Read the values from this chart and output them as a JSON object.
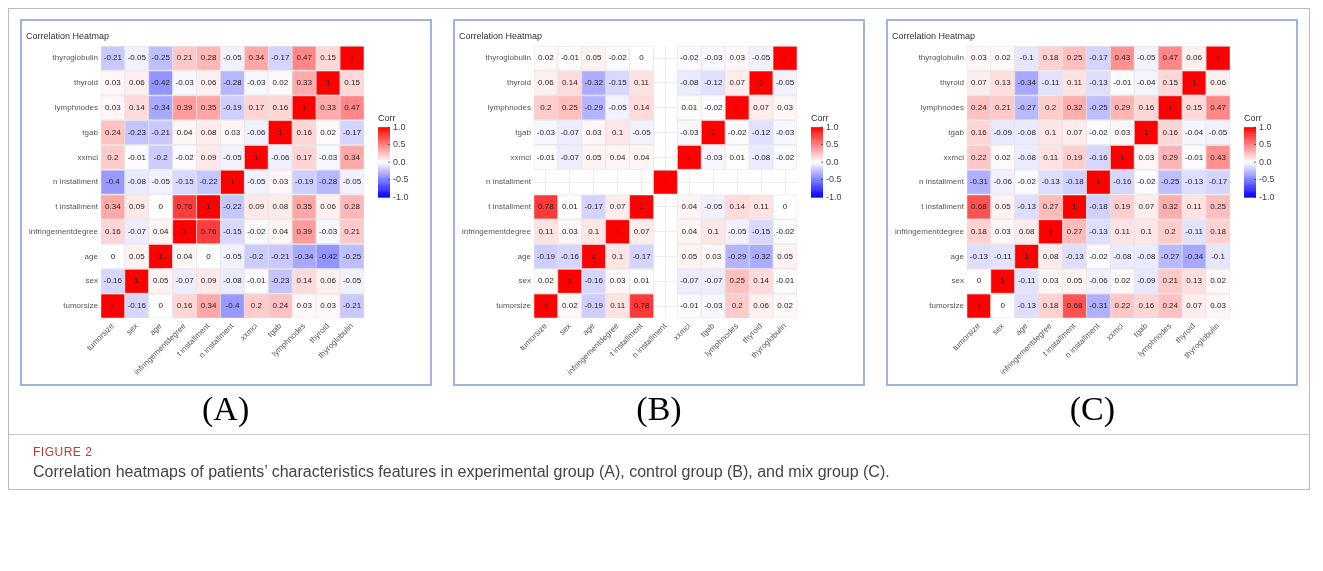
{
  "chart_data": [
    {
      "type": "heatmap",
      "title": "Correlation Heatmap",
      "clabel": "Corr",
      "annotations": [
        "(A)"
      ],
      "data_labels": true,
      "categories": [
        "tumorsize",
        "sex",
        "age",
        "infringementdegree",
        "t installment",
        "n installment",
        "xxmci",
        "tgab",
        "lymphnodes",
        "thyroid",
        "thyroglobulin"
      ],
      "y_categories": [
        "thyroglobulin",
        "thyroid",
        "lymphnodes",
        "tgab",
        "xxmci",
        "n installment",
        "t installment",
        "infringementdegree",
        "age",
        "sex",
        "tumorsize"
      ],
      "clim": [
        -1,
        1
      ],
      "cticks": [
        {
          "value": 1,
          "label": "1.0"
        },
        {
          "value": 0.5,
          "label": "0.5"
        },
        {
          "value": 0,
          "label": "0.0"
        },
        {
          "value": -0.5,
          "label": "-0.5"
        },
        {
          "value": -1,
          "label": "-1.0"
        }
      ],
      "cells": [
        [
          -0.21,
          -0.05,
          -0.25,
          0.21,
          0.28,
          -0.05,
          0.34,
          -0.17,
          0.47,
          0.15,
          1
        ],
        [
          0.03,
          0.06,
          -0.42,
          -0.03,
          0.06,
          -0.28,
          -0.03,
          0.02,
          0.33,
          1,
          0.15
        ],
        [
          0.03,
          0.14,
          -0.34,
          0.39,
          0.35,
          -0.19,
          0.17,
          0.16,
          1,
          0.33,
          0.47
        ],
        [
          0.24,
          -0.23,
          -0.21,
          0.04,
          0.08,
          0.03,
          -0.06,
          1,
          0.16,
          0.02,
          -0.17
        ],
        [
          0.2,
          -0.01,
          -0.2,
          -0.02,
          0.09,
          -0.05,
          1,
          -0.06,
          0.17,
          -0.03,
          0.34
        ],
        [
          -0.4,
          -0.08,
          -0.05,
          -0.15,
          -0.22,
          1,
          -0.05,
          0.03,
          -0.19,
          -0.28,
          -0.05
        ],
        [
          0.34,
          0.09,
          0,
          0.76,
          1,
          -0.22,
          0.09,
          0.08,
          0.35,
          0.06,
          0.28
        ],
        [
          0.16,
          -0.07,
          0.04,
          1,
          0.76,
          -0.15,
          -0.02,
          0.04,
          0.39,
          -0.03,
          0.21
        ],
        [
          0,
          0.05,
          1,
          0.04,
          0,
          -0.05,
          -0.2,
          -0.21,
          -0.34,
          -0.42,
          -0.25
        ],
        [
          -0.16,
          1,
          0.05,
          -0.07,
          0.09,
          -0.08,
          -0.01,
          -0.23,
          0.14,
          0.06,
          -0.05
        ],
        [
          1,
          -0.16,
          0,
          0.16,
          0.34,
          -0.4,
          0.2,
          0.24,
          0.03,
          0.03,
          -0.21
        ]
      ]
    },
    {
      "type": "heatmap",
      "title": "Correlation Heatmap",
      "clabel": "Corr",
      "annotations": [
        "(B)"
      ],
      "data_labels": true,
      "grid": true,
      "categories": [
        "tumorsize",
        "sex",
        "age",
        "infringementdegree",
        "t installment",
        "n installment",
        "xxmci",
        "tgab",
        "lymphnodes",
        "thyroid",
        "thyroglobulin"
      ],
      "y_categories": [
        "thyroglobulin",
        "thyroid",
        "lymphnodes",
        "tgab",
        "xxmci",
        "n installment",
        "t installment",
        "infringementdegree",
        "age",
        "sex",
        "tumorsize"
      ],
      "clim": [
        -1,
        1
      ],
      "cticks": [
        {
          "value": 1,
          "label": "1.0"
        },
        {
          "value": 0.5,
          "label": "0.5"
        },
        {
          "value": 0,
          "label": "0.0"
        },
        {
          "value": -0.5,
          "label": "-0.5"
        },
        {
          "value": -1,
          "label": "-1.0"
        }
      ],
      "cells": [
        [
          0.02,
          -0.01,
          0.05,
          -0.02,
          0,
          null,
          -0.02,
          -0.03,
          0.03,
          -0.05,
          1
        ],
        [
          0.06,
          0.14,
          -0.32,
          -0.15,
          0.11,
          null,
          -0.08,
          -0.12,
          0.07,
          1,
          -0.05
        ],
        [
          0.2,
          0.25,
          -0.29,
          -0.05,
          0.14,
          null,
          0.01,
          -0.02,
          1,
          0.07,
          0.03
        ],
        [
          -0.03,
          -0.07,
          0.03,
          0.1,
          -0.05,
          null,
          -0.03,
          1,
          -0.02,
          -0.12,
          -0.03
        ],
        [
          -0.01,
          -0.07,
          0.05,
          0.04,
          0.04,
          null,
          1,
          -0.03,
          0.01,
          -0.08,
          -0.02
        ],
        [
          null,
          null,
          null,
          null,
          null,
          1,
          null,
          null,
          null,
          null,
          null
        ],
        [
          0.78,
          0.01,
          -0.17,
          0.07,
          1,
          null,
          0.04,
          -0.05,
          0.14,
          0.11,
          0
        ],
        [
          0.11,
          0.03,
          0.1,
          1,
          0.07,
          null,
          0.04,
          0.1,
          -0.05,
          -0.15,
          -0.02
        ],
        [
          -0.19,
          -0.16,
          1,
          0.1,
          -0.17,
          null,
          0.05,
          0.03,
          -0.29,
          -0.32,
          0.05
        ],
        [
          0.02,
          1,
          -0.16,
          0.03,
          0.01,
          null,
          -0.07,
          -0.07,
          0.25,
          0.14,
          -0.01
        ],
        [
          1,
          0.02,
          -0.19,
          0.11,
          0.78,
          null,
          -0.01,
          -0.03,
          0.2,
          0.06,
          0.02
        ]
      ]
    },
    {
      "type": "heatmap",
      "title": "Correlation Heatmap",
      "clabel": "Corr",
      "annotations": [
        "(C)"
      ],
      "data_labels": true,
      "categories": [
        "tumorsize",
        "sex",
        "age",
        "infringementdegree",
        "t installment",
        "n installment",
        "xxmci",
        "tgab",
        "lymphnodes",
        "thyroid",
        "thyroglobulin"
      ],
      "y_categories": [
        "thyroglobulin",
        "thyroid",
        "lymphnodes",
        "tgab",
        "xxmci",
        "n installment",
        "t installment",
        "infringementdegree",
        "age",
        "sex",
        "tumorsize"
      ],
      "clim": [
        -1,
        1
      ],
      "cticks": [
        {
          "value": 1,
          "label": "1.0"
        },
        {
          "value": 0.5,
          "label": "0.5"
        },
        {
          "value": 0,
          "label": "0.0"
        },
        {
          "value": -0.5,
          "label": "-0.5"
        },
        {
          "value": -1,
          "label": "-1.0"
        }
      ],
      "cells": [
        [
          0.03,
          0.02,
          -0.1,
          0.18,
          0.25,
          -0.17,
          0.43,
          -0.05,
          0.47,
          0.06,
          1
        ],
        [
          0.07,
          0.13,
          -0.34,
          -0.11,
          0.11,
          -0.13,
          -0.01,
          -0.04,
          0.15,
          1,
          0.06
        ],
        [
          0.24,
          0.21,
          -0.27,
          0.2,
          0.32,
          -0.25,
          0.29,
          0.16,
          1,
          0.15,
          0.47
        ],
        [
          0.16,
          -0.09,
          -0.08,
          0.1,
          0.07,
          -0.02,
          0.03,
          1,
          0.16,
          -0.04,
          -0.05
        ],
        [
          0.22,
          0.02,
          -0.08,
          0.11,
          0.19,
          -0.16,
          1,
          0.03,
          0.29,
          -0.01,
          0.43
        ],
        [
          -0.31,
          -0.06,
          -0.02,
          -0.13,
          -0.18,
          1,
          -0.16,
          -0.02,
          -0.25,
          -0.13,
          -0.17
        ],
        [
          0.68,
          0.05,
          -0.13,
          0.27,
          1,
          -0.18,
          0.19,
          0.07,
          0.32,
          0.11,
          0.25
        ],
        [
          0.18,
          0.03,
          0.08,
          1,
          0.27,
          -0.13,
          0.11,
          0.1,
          0.2,
          -0.11,
          0.18
        ],
        [
          -0.13,
          -0.11,
          1,
          0.08,
          -0.13,
          -0.02,
          -0.08,
          -0.08,
          -0.27,
          -0.34,
          -0.1
        ],
        [
          0,
          1,
          -0.11,
          0.03,
          0.05,
          -0.06,
          0.02,
          -0.09,
          0.21,
          0.13,
          0.02
        ],
        [
          1,
          0,
          -0.13,
          0.18,
          0.68,
          -0.31,
          0.22,
          0.16,
          0.24,
          0.07,
          0.03
        ]
      ]
    },
    {
      "type": "other",
      "annotations": [
        "FIGURE 2",
        "Correlation heatmaps of patients’ characteristics features in experimental group (A), control group (B), and mix group (C)."
      ]
    }
  ]
}
